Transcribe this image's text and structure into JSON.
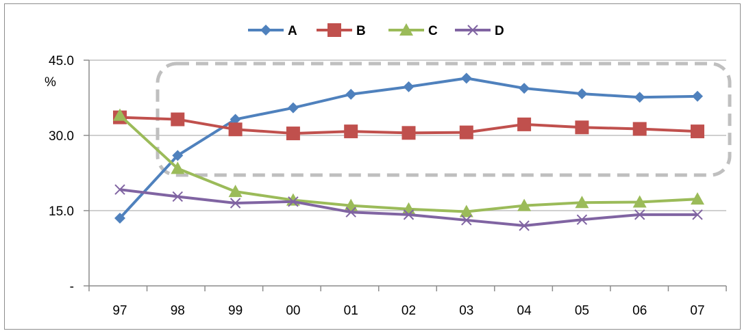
{
  "chart_data": {
    "type": "line",
    "categories": [
      "97",
      "98",
      "99",
      "00",
      "01",
      "02",
      "03",
      "04",
      "05",
      "06",
      "07"
    ],
    "series": [
      {
        "name": "A",
        "color": "#4f81bd",
        "marker": "diamond",
        "values": [
          13.5,
          26.0,
          33.2,
          35.5,
          38.2,
          39.7,
          41.4,
          39.4,
          38.3,
          37.6,
          37.8
        ]
      },
      {
        "name": "B",
        "color": "#c0504d",
        "marker": "square",
        "values": [
          33.6,
          33.2,
          31.2,
          30.4,
          30.8,
          30.5,
          30.6,
          32.2,
          31.6,
          31.3,
          30.8
        ]
      },
      {
        "name": "C",
        "color": "#9bbb59",
        "marker": "triangle",
        "values": [
          34.0,
          23.4,
          18.8,
          17.1,
          16.0,
          15.3,
          14.8,
          16.0,
          16.6,
          16.7,
          17.3
        ]
      },
      {
        "name": "D",
        "color": "#8064a2",
        "marker": "x",
        "values": [
          19.2,
          17.8,
          16.5,
          16.8,
          14.7,
          14.2,
          13.1,
          12.0,
          13.2,
          14.2,
          14.2
        ]
      }
    ],
    "ylim": [
      0,
      45
    ],
    "yticks": [
      0,
      15,
      30,
      45
    ],
    "ytick_labels": [
      "-",
      "15.0",
      "30.0",
      "45.0"
    ],
    "ylabel": "%",
    "legend_position": "top",
    "grid": "horizontal",
    "grid_color": "#bfbfbf",
    "highlight_box_color": "#bfbfbf"
  }
}
